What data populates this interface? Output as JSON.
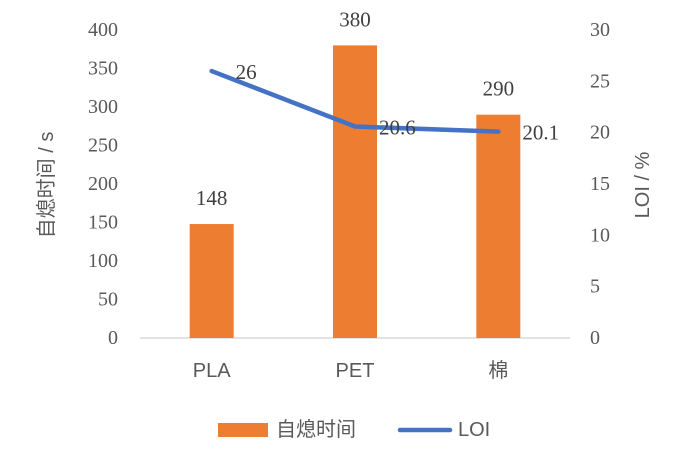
{
  "colors": {
    "bar": "#ED7D31",
    "line": "#4472C4",
    "axis": "#D9D9D9"
  },
  "chart_data": {
    "type": "bar",
    "categories": [
      "PLA",
      "PET",
      "棉"
    ],
    "series": [
      {
        "name": "自熄时间",
        "type": "bar",
        "axis": "left",
        "values": [
          148,
          380,
          290
        ],
        "labels": [
          "148",
          "380",
          "290"
        ]
      },
      {
        "name": "LOI",
        "type": "line",
        "axis": "right",
        "values": [
          26,
          20.6,
          20.1
        ],
        "labels": [
          "26",
          "20.6",
          "20.1"
        ]
      }
    ],
    "ylabel": "自熄时间 / s",
    "y2label": "LOI / %",
    "ylim": [
      0,
      400
    ],
    "y2lim": [
      0,
      30
    ],
    "yticks": [
      "0",
      "50",
      "100",
      "150",
      "200",
      "250",
      "300",
      "350",
      "400"
    ],
    "y2ticks": [
      "0",
      "5",
      "10",
      "15",
      "20",
      "25",
      "30"
    ],
    "grid": false,
    "legend": "bottom"
  }
}
